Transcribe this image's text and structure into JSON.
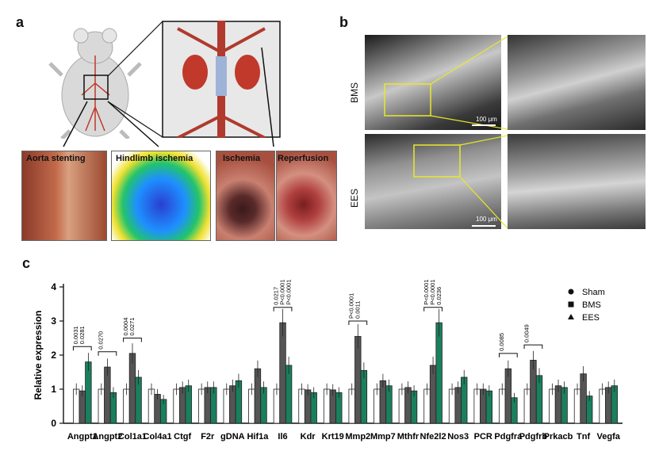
{
  "panel_a": {
    "letter": "a",
    "photos": [
      {
        "title": "Aorta stenting"
      },
      {
        "title": "Hindlimb ischemia"
      },
      {
        "title": "Ischemia"
      },
      {
        "title": "Reperfusion"
      }
    ]
  },
  "panel_b": {
    "letter": "b",
    "rows": [
      {
        "label": "BMS",
        "scale": "100 μm"
      },
      {
        "label": "EES",
        "scale": "100 μm"
      }
    ]
  },
  "panel_c": {
    "letter": "c",
    "colors": {
      "sham": "#ffffff",
      "bms": "#555555",
      "ees": "#1a7f5e"
    }
  },
  "chart_data": {
    "type": "bar",
    "ylabel": "Relative expression",
    "ylim": [
      0,
      4
    ],
    "yticks": [
      "0",
      "1",
      "2",
      "3",
      "4"
    ],
    "categories": [
      "Angpt1",
      "Angpt2",
      "Col1a1",
      "Col4a1",
      "Ctgf",
      "F2r",
      "gDNA",
      "Hif1a",
      "Il6",
      "Kdr",
      "Krt19",
      "Mmp2",
      "Mmp7",
      "Mthfr",
      "Nfe2l2",
      "Nos3",
      "PCR",
      "Pdgfra",
      "Pdgfrb",
      "Prkacb",
      "Tnf",
      "Vegfa"
    ],
    "series": [
      {
        "name": "Sham",
        "values": [
          1.0,
          1.0,
          1.0,
          1.0,
          1.0,
          1.0,
          1.0,
          1.0,
          1.0,
          1.0,
          1.0,
          1.0,
          1.0,
          1.0,
          1.0,
          1.0,
          1.0,
          1.0,
          1.0,
          1.0,
          1.0,
          1.0
        ]
      },
      {
        "name": "BMS",
        "values": [
          0.95,
          1.65,
          2.05,
          0.85,
          1.05,
          1.05,
          1.1,
          1.6,
          2.95,
          0.98,
          0.98,
          2.55,
          1.25,
          1.05,
          1.7,
          1.05,
          1.0,
          1.6,
          1.85,
          1.1,
          1.45,
          1.05
        ]
      },
      {
        "name": "EES",
        "values": [
          1.8,
          0.9,
          1.35,
          0.7,
          1.1,
          1.05,
          1.25,
          1.05,
          1.7,
          0.9,
          0.9,
          1.55,
          1.1,
          0.95,
          2.95,
          1.35,
          0.95,
          0.75,
          1.4,
          1.05,
          0.8,
          1.1
        ]
      }
    ],
    "annotations": [
      {
        "gene": "Angpt1",
        "texts": [
          "0.0031",
          "0.0281"
        ]
      },
      {
        "gene": "Angpt2",
        "texts": [
          "0.0270"
        ]
      },
      {
        "gene": "Col1a1",
        "texts": [
          "0.0004",
          "0.0271"
        ]
      },
      {
        "gene": "Il6",
        "texts": [
          "0.0217",
          "P<0.0001",
          "P<0.0001"
        ]
      },
      {
        "gene": "Mmp2",
        "texts": [
          "P<0.0001",
          "0.0011"
        ]
      },
      {
        "gene": "Nfe2l2",
        "texts": [
          "P<0.0001",
          "P<0.0001",
          "0.0236"
        ]
      },
      {
        "gene": "Pdgfra",
        "texts": [
          "0.0085"
        ]
      },
      {
        "gene": "Pdgfrb",
        "texts": [
          "0.0049"
        ]
      }
    ],
    "legend_position": "top-right"
  }
}
